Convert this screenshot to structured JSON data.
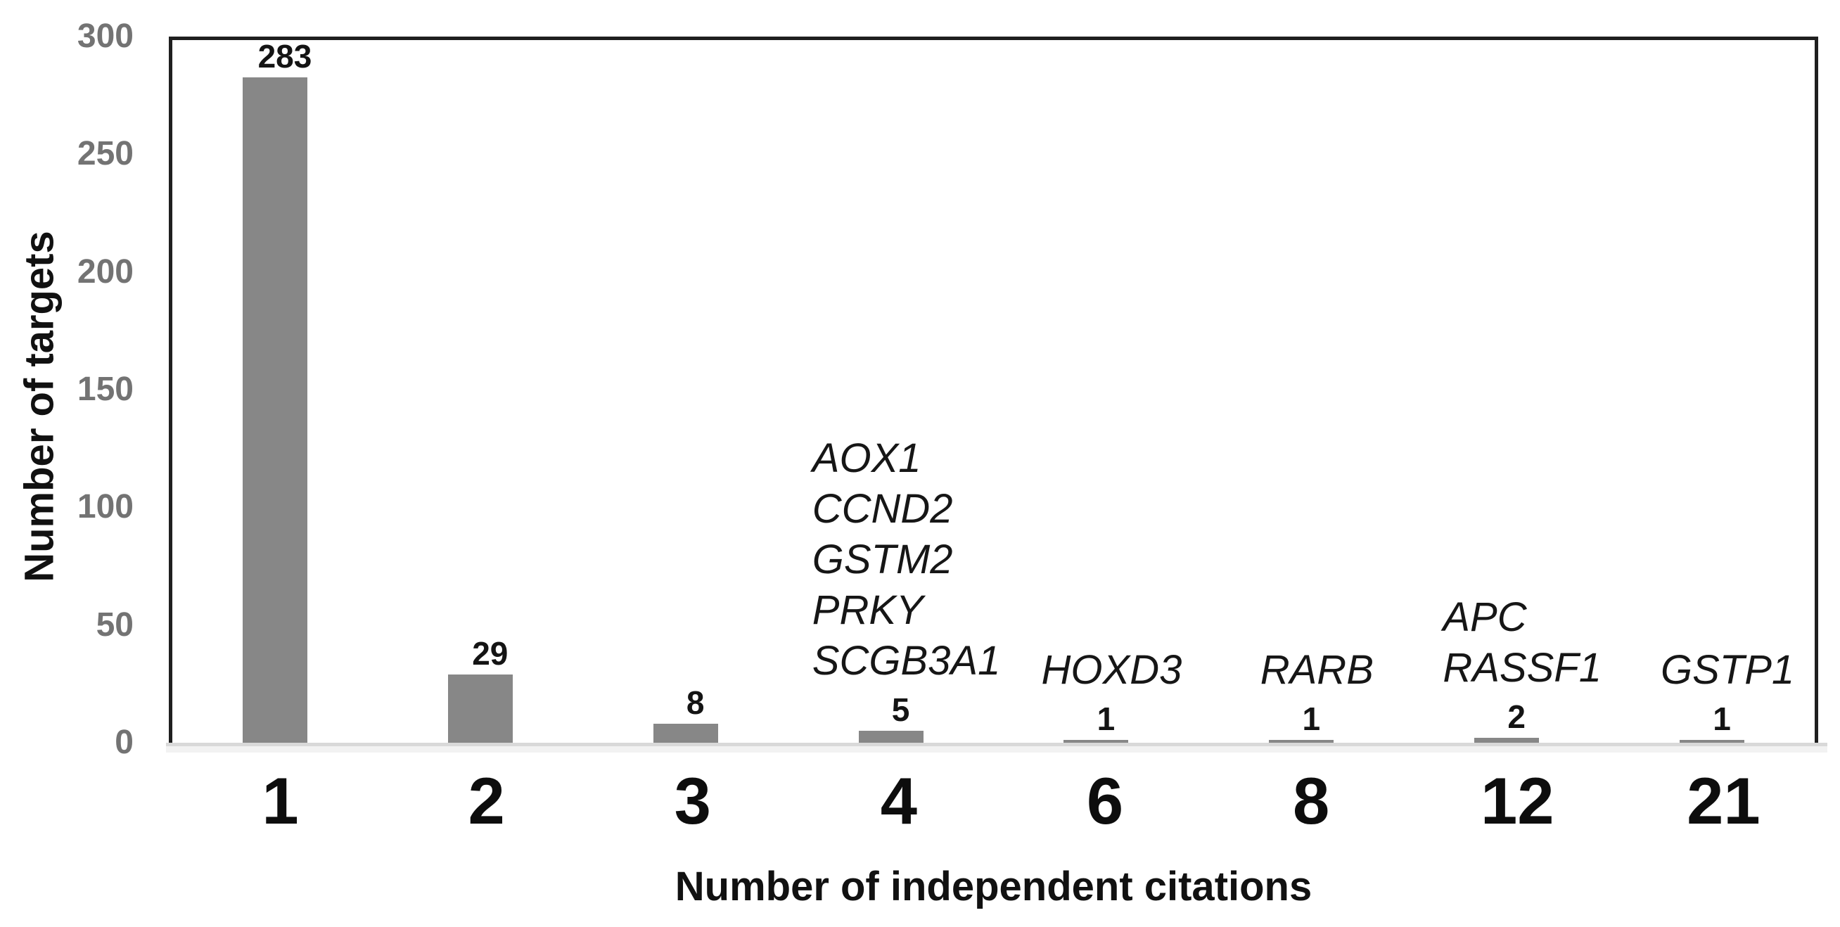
{
  "chart_data": {
    "type": "bar",
    "title": "",
    "xlabel": "Number of independent citations",
    "ylabel": "Number of targets",
    "categories": [
      "1",
      "2",
      "3",
      "4",
      "6",
      "8",
      "12",
      "21"
    ],
    "values": [
      283,
      29,
      8,
      5,
      1,
      1,
      2,
      1
    ],
    "value_labels": [
      "283",
      "29",
      "8",
      "5",
      "1",
      "1",
      "2",
      "1"
    ],
    "ylim": [
      0,
      300
    ],
    "yticks": [
      0,
      50,
      100,
      150,
      200,
      250,
      300
    ],
    "grid": false,
    "legend": null,
    "bar_color": "#878787",
    "annotations": [
      {
        "category": "4",
        "genes": [
          "AOX1",
          "CCND2",
          "GSTM2",
          "PRKY",
          "SCGB3A1"
        ]
      },
      {
        "category": "6",
        "genes": [
          "HOXD3"
        ]
      },
      {
        "category": "8",
        "genes": [
          "RARB"
        ]
      },
      {
        "category": "12",
        "genes": [
          "APC",
          "RASSF1"
        ]
      },
      {
        "category": "21",
        "genes": [
          "GSTP1"
        ]
      }
    ]
  },
  "colors": {
    "bar": "#878787",
    "plot_border": "#1f1f1f",
    "baseline": "#d9d9d9",
    "tick_label": "#737373",
    "text": "#111111"
  }
}
